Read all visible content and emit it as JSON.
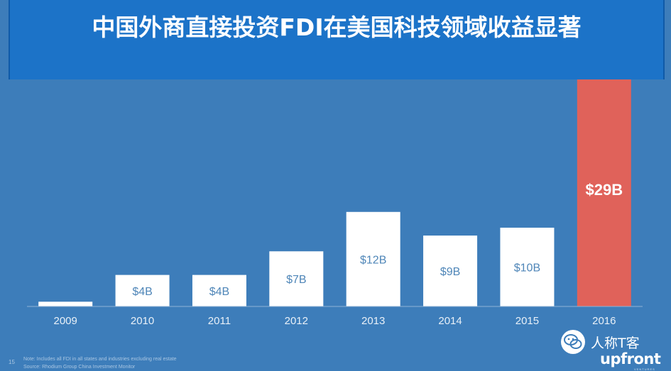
{
  "slide": {
    "title": "中国外商直接投资FDI在美国科技领域收益显著",
    "page_number": "15",
    "note": "Note: Includes all FDI in all states and industries excluding real estate",
    "source": "Source: Rhodium Group China Investment Monitor"
  },
  "watermark": {
    "icon": "wechat-icon",
    "text": "人称T客"
  },
  "logo": {
    "text": "upfront",
    "subtext": "VENTURES"
  },
  "colors": {
    "background": "#3d7dba",
    "title_bar": "#1c73c8",
    "bar": "#ffffff",
    "highlight_bar": "#e0625a",
    "axis": "#8fb3d6"
  },
  "chart_data": {
    "type": "bar",
    "title": "",
    "xlabel": "",
    "ylabel": "",
    "categories": [
      "2009",
      "2010",
      "2011",
      "2012",
      "2013",
      "2014",
      "2015",
      "2016"
    ],
    "values": [
      0.6,
      4,
      4,
      7,
      12,
      9,
      10,
      29
    ],
    "data_labels": [
      "",
      "$4B",
      "$4B",
      "$7B",
      "$12B",
      "$9B",
      "$10B",
      "$29B"
    ],
    "highlight_index": 7,
    "ylim": [
      0,
      29
    ],
    "grid": false
  }
}
